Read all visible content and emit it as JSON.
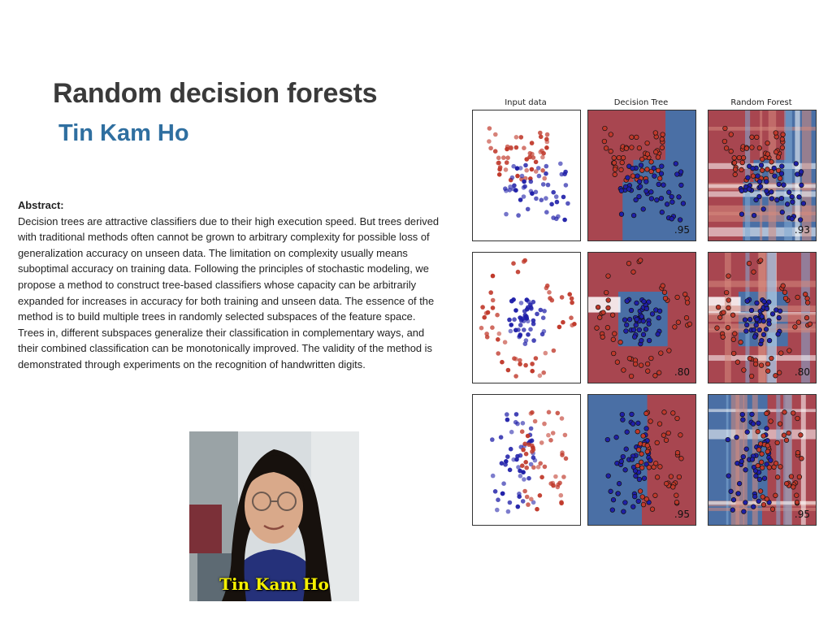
{
  "slide": {
    "title": "Random decision forests",
    "author": "Tin Kam Ho",
    "abstract_label": "Abstract:",
    "abstract_lines": [
      "Decision trees are attractive classifiers due to their high execution speed. But trees derived",
      "with traditional methods often cannot be grown to arbitrary complexity for possible loss of",
      "generalization accuracy on unseen data. The limitation on complexity usually means",
      "suboptimal accuracy on training data. Following the principles of stochastic modeling, we",
      "propose a method to construct tree-based classifiers whose capacity can be arbitrarily",
      "expanded for increases in accuracy for both training and unseen data. The essence of the",
      "method is to build multiple trees in randomly selected subspaces of the feature space.",
      "Trees in, different subspaces generalize their classification in complementary ways, and",
      "their combined classification can be monotonically improved. The validity of the method is",
      "demonstrated through experiments on the recognition of handwritten digits."
    ],
    "photo_caption": "Tin Kam Ho"
  },
  "figure": {
    "columns": [
      "Input data",
      "Decision Tree",
      "Random Forest"
    ],
    "scores": [
      [
        ".95",
        ".93"
      ],
      [
        ".80",
        ".80"
      ],
      [
        ".95",
        ".95"
      ]
    ],
    "colors": {
      "red_point": "#c0392b",
      "blue_point": "#1f1fa8",
      "red_region": "#a84650",
      "blue_region": "#4a6fa5",
      "light_red_region": "#d58a7e",
      "light_blue_region": "#82acd6"
    }
  }
}
